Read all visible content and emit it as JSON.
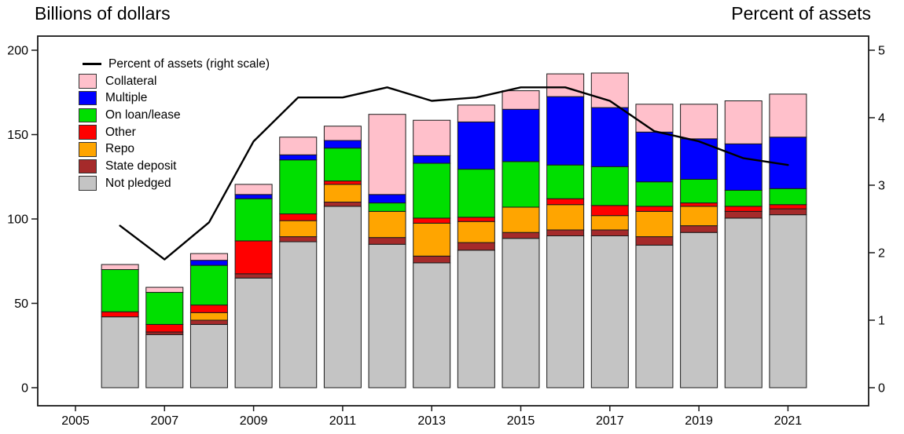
{
  "titles": {
    "left": "Billions of dollars",
    "right": "Percent of assets"
  },
  "chart_data": {
    "type": "bar",
    "subtype": "stacked-bars-with-line-overlay",
    "title": "",
    "x": [
      2006,
      2007,
      2008,
      2009,
      2010,
      2011,
      2012,
      2013,
      2014,
      2015,
      2016,
      2017,
      2018,
      2019,
      2020,
      2021
    ],
    "series": [
      {
        "name": "Not pledged",
        "color": "#C4C4C4",
        "values": [
          42,
          31.5,
          37.5,
          65,
          86.5,
          107.5,
          85,
          74,
          81.5,
          88.5,
          90,
          90,
          84.5,
          92,
          100.5,
          102.5
        ]
      },
      {
        "name": "State deposit",
        "color": "#A52A2A",
        "values": [
          0,
          1.5,
          2.5,
          2.5,
          3,
          2.5,
          4,
          4,
          4.5,
          3.5,
          3.5,
          3.5,
          5,
          4,
          4,
          3.5
        ]
      },
      {
        "name": "Repo",
        "color": "#FFA500",
        "values": [
          0,
          0,
          4.5,
          0,
          9.5,
          10.5,
          15.5,
          19.5,
          12.5,
          15,
          15,
          8.5,
          15,
          11.5,
          0,
          0
        ]
      },
      {
        "name": "Other",
        "color": "#FF0000",
        "values": [
          3,
          4.5,
          4.5,
          19.5,
          4,
          2,
          0,
          3,
          2.5,
          0,
          3.5,
          6,
          3,
          2,
          3,
          2.5
        ]
      },
      {
        "name": "On loan/lease",
        "color": "#00DF00",
        "values": [
          25,
          19,
          23.5,
          25,
          32,
          19.5,
          5,
          32.5,
          28.5,
          27,
          20,
          23,
          14.5,
          14,
          9.5,
          9.5
        ]
      },
      {
        "name": "Multiple",
        "color": "#0000FF",
        "values": [
          0,
          0,
          3,
          2.5,
          3,
          4.5,
          5,
          4.5,
          28,
          31,
          40.5,
          35,
          29.5,
          24,
          27.5,
          30.5
        ]
      },
      {
        "name": "Collateral",
        "color": "#FFC0CB",
        "values": [
          3,
          3,
          4,
          6,
          10.5,
          8.5,
          47.5,
          21,
          10,
          11,
          13.5,
          20.5,
          16.5,
          20.5,
          25.5,
          25.5
        ]
      }
    ],
    "bar_totals": [
      73,
      59.5,
      79.5,
      120.5,
      148.5,
      155,
      162,
      158.5,
      167.5,
      176,
      186,
      186.5,
      168,
      168,
      170,
      174
    ],
    "line_series": {
      "name": "Percent of assets (right scale)",
      "color": "#000000",
      "axis": "right",
      "values": [
        2.4,
        1.9,
        2.45,
        3.65,
        4.3,
        4.3,
        4.45,
        4.25,
        4.3,
        4.45,
        4.45,
        4.25,
        3.8,
        3.65,
        3.4,
        3.3
      ]
    },
    "left_axis": {
      "label": "Billions of dollars",
      "ticks": [
        0,
        50,
        100,
        150,
        200
      ],
      "range": [
        0,
        208
      ]
    },
    "right_axis": {
      "label": "Percent of assets",
      "ticks": [
        0,
        1,
        2,
        3,
        4,
        5
      ],
      "range": [
        0,
        5.2
      ]
    },
    "x_axis": {
      "base_year": 2005,
      "ticks": [
        2005,
        2007,
        2009,
        2011,
        2013,
        2015,
        2017,
        2019,
        2021
      ]
    },
    "grid": false,
    "legend_position": "top-left-inside"
  }
}
